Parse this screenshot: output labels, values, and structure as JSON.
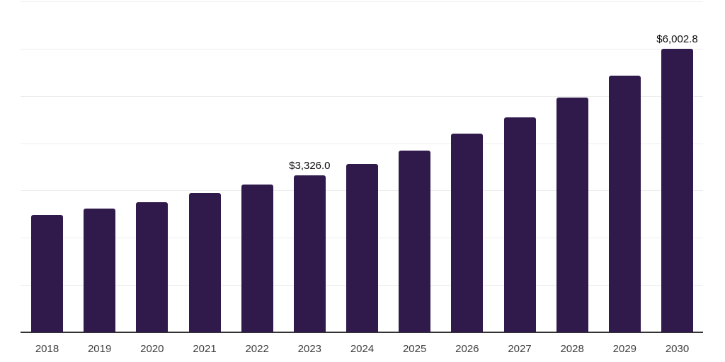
{
  "page": {
    "background_color": "#ffffff"
  },
  "chart_data": {
    "type": "bar",
    "title": "",
    "categories": [
      "2018",
      "2019",
      "2020",
      "2021",
      "2022",
      "2023",
      "2024",
      "2025",
      "2026",
      "2027",
      "2028",
      "2029",
      "2030"
    ],
    "values": [
      2480,
      2615,
      2750,
      2940,
      3125,
      3326.0,
      3560,
      3845,
      4200,
      4545,
      4965,
      5430,
      6002.8
    ],
    "data_labels": [
      {
        "category": "2023",
        "text": "$3,326.0"
      },
      {
        "category": "2030",
        "text": "$6,002.8"
      }
    ],
    "xlabel": "",
    "ylabel": "",
    "ylim": [
      0,
      7000
    ],
    "gridline_step": 1000,
    "grid": true,
    "y_axis_tick_labels_visible": false,
    "legend_position": "none",
    "bar_color": "#301a4b",
    "gridline_color": "#ededed",
    "axis_line_color": "#333333",
    "tick_label_color": "#3f3f3f",
    "data_label_color": "#0d0d0d"
  }
}
